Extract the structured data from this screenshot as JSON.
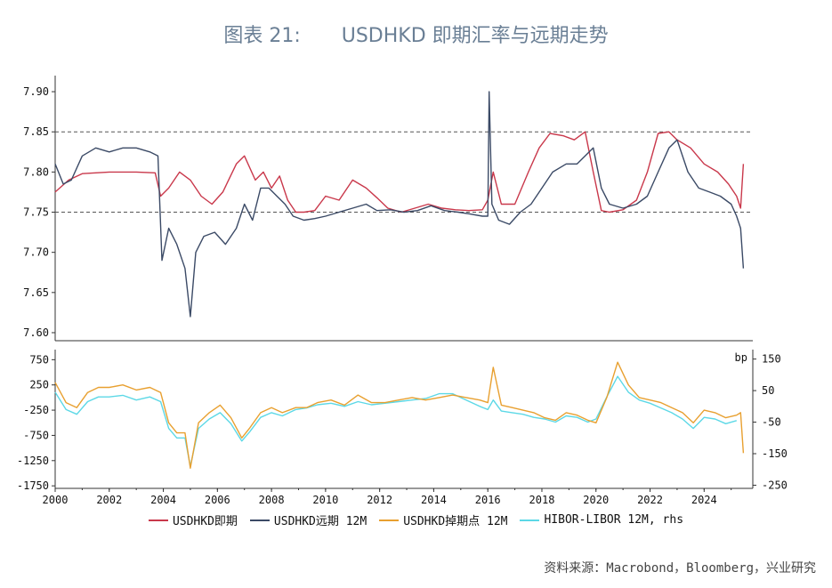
{
  "title_prefix": "图表 21:",
  "title_main": "USDHKD 即期汇率与远期走势",
  "source": "资料来源：Macrobond，Bloomberg，兴业研究",
  "chart_data": [
    {
      "type": "line",
      "panel": "top",
      "ylim": [
        7.59,
        7.92
      ],
      "yticks": [
        "7.90",
        "7.85",
        "7.80",
        "7.75",
        "7.70",
        "7.65",
        "7.60"
      ],
      "reference_lines": [
        7.85,
        7.75
      ],
      "series": [
        {
          "name": "USDHKD即期",
          "color": "#c9384b",
          "x": [
            2000.0,
            2000.5,
            2001.0,
            2002.0,
            2003.0,
            2003.7,
            2003.9,
            2004.2,
            2004.6,
            2005.0,
            2005.4,
            2005.8,
            2006.2,
            2006.7,
            2007.0,
            2007.4,
            2007.7,
            2008.0,
            2008.3,
            2008.6,
            2008.9,
            2009.2,
            2009.6,
            2010.0,
            2010.5,
            2011.0,
            2011.5,
            2011.9,
            2012.3,
            2012.8,
            2013.3,
            2013.8,
            2014.3,
            2014.8,
            2015.3,
            2015.8,
            2016.0,
            2016.2,
            2016.5,
            2017.0,
            2017.5,
            2017.9,
            2018.3,
            2018.8,
            2019.2,
            2019.6,
            2019.9,
            2020.2,
            2020.5,
            2021.0,
            2021.5,
            2021.9,
            2022.3,
            2022.7,
            2023.0,
            2023.5,
            2024.0,
            2024.5,
            2024.9,
            2025.2,
            2025.35,
            2025.45
          ],
          "y": [
            7.775,
            7.79,
            7.798,
            7.8,
            7.8,
            7.799,
            7.77,
            7.78,
            7.8,
            7.79,
            7.77,
            7.76,
            7.775,
            7.81,
            7.82,
            7.79,
            7.8,
            7.78,
            7.795,
            7.765,
            7.75,
            7.75,
            7.752,
            7.77,
            7.765,
            7.79,
            7.78,
            7.768,
            7.755,
            7.75,
            7.755,
            7.76,
            7.755,
            7.753,
            7.752,
            7.753,
            7.765,
            7.8,
            7.76,
            7.76,
            7.8,
            7.83,
            7.848,
            7.845,
            7.84,
            7.85,
            7.8,
            7.752,
            7.75,
            7.753,
            7.765,
            7.8,
            7.848,
            7.85,
            7.84,
            7.83,
            7.81,
            7.8,
            7.785,
            7.77,
            7.755,
            7.81
          ]
        },
        {
          "name": "USDHKD远期 12M",
          "color": "#3b4a66",
          "x": [
            2000.0,
            2000.3,
            2000.6,
            2001.0,
            2001.5,
            2002.0,
            2002.5,
            2003.0,
            2003.5,
            2003.8,
            2003.95,
            2004.2,
            2004.5,
            2004.8,
            2005.0,
            2005.2,
            2005.5,
            2005.9,
            2006.3,
            2006.7,
            2007.0,
            2007.3,
            2007.6,
            2007.9,
            2008.2,
            2008.5,
            2008.8,
            2009.2,
            2009.6,
            2010.0,
            2010.5,
            2011.0,
            2011.5,
            2011.9,
            2012.4,
            2012.9,
            2013.4,
            2013.9,
            2014.4,
            2014.9,
            2015.3,
            2015.8,
            2016.0,
            2016.05,
            2016.15,
            2016.4,
            2016.8,
            2017.2,
            2017.6,
            2018.0,
            2018.4,
            2018.9,
            2019.3,
            2019.6,
            2019.9,
            2020.2,
            2020.5,
            2021.0,
            2021.5,
            2021.9,
            2022.3,
            2022.7,
            2023.0,
            2023.4,
            2023.8,
            2024.2,
            2024.6,
            2025.0,
            2025.2,
            2025.35,
            2025.45
          ],
          "y": [
            7.81,
            7.785,
            7.79,
            7.82,
            7.83,
            7.825,
            7.83,
            7.83,
            7.825,
            7.82,
            7.69,
            7.73,
            7.71,
            7.68,
            7.62,
            7.7,
            7.72,
            7.725,
            7.71,
            7.73,
            7.76,
            7.74,
            7.78,
            7.78,
            7.77,
            7.76,
            7.745,
            7.74,
            7.742,
            7.745,
            7.75,
            7.755,
            7.76,
            7.752,
            7.753,
            7.75,
            7.752,
            7.758,
            7.752,
            7.75,
            7.748,
            7.745,
            7.745,
            7.9,
            7.76,
            7.74,
            7.735,
            7.75,
            7.76,
            7.78,
            7.8,
            7.81,
            7.81,
            7.82,
            7.83,
            7.78,
            7.76,
            7.755,
            7.76,
            7.77,
            7.8,
            7.83,
            7.84,
            7.8,
            7.78,
            7.775,
            7.77,
            7.76,
            7.745,
            7.73,
            7.68
          ]
        }
      ]
    },
    {
      "type": "line",
      "panel": "bottom",
      "ylim_left": [
        -1800,
        950
      ],
      "ylim_right": [
        -260,
        180
      ],
      "yticks_left": [
        "750",
        "250",
        "-250",
        "-750",
        "-1250",
        "-1750"
      ],
      "yticks_right": [
        "150",
        "50",
        "-50",
        "-150",
        "-250"
      ],
      "ylabel_right": "bp",
      "xlim": [
        2000,
        2025.8
      ],
      "xticks": [
        "2000",
        "2002",
        "2004",
        "2006",
        "2008",
        "2010",
        "2012",
        "2014",
        "2016",
        "2018",
        "2020",
        "2022",
        "2024"
      ],
      "series": [
        {
          "name": "USDHKD掉期点 12M",
          "color": "#e8a030",
          "x": [
            2000.0,
            2000.4,
            2000.8,
            2001.2,
            2001.6,
            2002.0,
            2002.5,
            2003.0,
            2003.5,
            2003.9,
            2004.2,
            2004.5,
            2004.8,
            2005.0,
            2005.3,
            2005.7,
            2006.1,
            2006.5,
            2006.9,
            2007.2,
            2007.6,
            2008.0,
            2008.4,
            2008.9,
            2009.3,
            2009.7,
            2010.2,
            2010.7,
            2011.2,
            2011.7,
            2012.2,
            2012.7,
            2013.2,
            2013.7,
            2014.2,
            2014.7,
            2015.2,
            2015.7,
            2016.0,
            2016.2,
            2016.5,
            2016.9,
            2017.3,
            2017.7,
            2018.1,
            2018.5,
            2018.9,
            2019.3,
            2019.7,
            2020.0,
            2020.4,
            2020.8,
            2021.2,
            2021.6,
            2022.0,
            2022.4,
            2022.8,
            2023.2,
            2023.6,
            2024.0,
            2024.4,
            2024.8,
            2025.2,
            2025.35,
            2025.45
          ],
          "y": [
            300,
            -100,
            -200,
            100,
            200,
            200,
            250,
            150,
            200,
            100,
            -500,
            -700,
            -700,
            -1400,
            -500,
            -300,
            -150,
            -400,
            -800,
            -600,
            -300,
            -200,
            -300,
            -200,
            -200,
            -100,
            -50,
            -150,
            50,
            -100,
            -100,
            -50,
            0,
            -50,
            0,
            50,
            0,
            -50,
            -100,
            600,
            -150,
            -200,
            -250,
            -300,
            -400,
            -450,
            -300,
            -350,
            -450,
            -500,
            0,
            700,
            250,
            0,
            -50,
            -100,
            -200,
            -300,
            -500,
            -250,
            -300,
            -400,
            -350,
            -300,
            -1100
          ]
        },
        {
          "name": "HIBOR-LIBOR 12M, rhs",
          "color": "#5cd8e6",
          "x": [
            2000.0,
            2000.4,
            2000.8,
            2001.2,
            2001.6,
            2002.0,
            2002.5,
            2003.0,
            2003.5,
            2003.9,
            2004.2,
            2004.5,
            2004.8,
            2005.0,
            2005.3,
            2005.7,
            2006.1,
            2006.5,
            2006.9,
            2007.2,
            2007.6,
            2008.0,
            2008.4,
            2008.9,
            2009.3,
            2009.7,
            2010.2,
            2010.7,
            2011.2,
            2011.7,
            2012.2,
            2012.7,
            2013.2,
            2013.7,
            2014.2,
            2014.7,
            2015.2,
            2015.7,
            2016.0,
            2016.2,
            2016.5,
            2016.9,
            2017.3,
            2017.7,
            2018.1,
            2018.5,
            2018.9,
            2019.3,
            2019.7,
            2020.0,
            2020.4,
            2020.8,
            2021.2,
            2021.6,
            2022.0,
            2022.4,
            2022.8,
            2023.2,
            2023.6,
            2024.0,
            2024.4,
            2024.8,
            2025.2
          ],
          "y": [
            45,
            -10,
            -25,
            15,
            30,
            30,
            35,
            20,
            30,
            15,
            -70,
            -100,
            -100,
            -190,
            -70,
            -40,
            -20,
            -55,
            -110,
            -80,
            -35,
            -20,
            -30,
            -10,
            -5,
            5,
            10,
            0,
            15,
            5,
            10,
            15,
            20,
            25,
            40,
            40,
            20,
            0,
            -10,
            20,
            -15,
            -20,
            -25,
            -35,
            -40,
            -50,
            -30,
            -35,
            -50,
            -40,
            30,
            95,
            45,
            20,
            10,
            -5,
            -20,
            -40,
            -70,
            -35,
            -40,
            -55,
            -45
          ]
        }
      ]
    }
  ],
  "legend": [
    {
      "label": "USDHKD即期",
      "color": "#c9384b"
    },
    {
      "label": "USDHKD远期 12M",
      "color": "#3b4a66"
    },
    {
      "label": "USDHKD掉期点 12M",
      "color": "#e8a030"
    },
    {
      "label": "HIBOR-LIBOR 12M, rhs",
      "color": "#5cd8e6"
    }
  ]
}
